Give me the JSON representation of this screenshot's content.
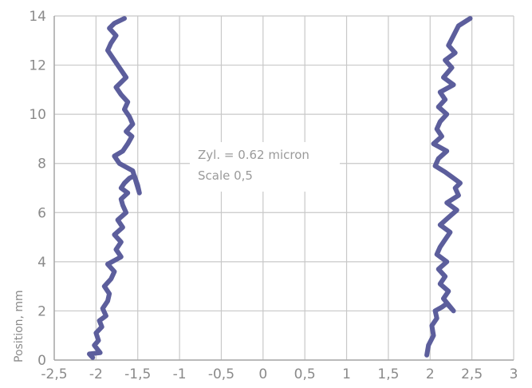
{
  "chart_data": {
    "type": "line",
    "title": "",
    "xlabel": "",
    "ylabel": "Position, mm",
    "xlim": [
      -2.5,
      3
    ],
    "ylim": [
      0,
      14
    ],
    "x_ticks": [
      "-2,5",
      "-2",
      "-1,5",
      "-1",
      "-0,5",
      "0",
      "0,5",
      "1",
      "1,5",
      "2",
      "2,5",
      "3"
    ],
    "y_ticks": [
      "0",
      "2",
      "4",
      "6",
      "8",
      "10",
      "12",
      "14"
    ],
    "grid": true,
    "legend": "none",
    "series_color": "#5c5e9c",
    "annotations": [
      "Zyl. = 0.62 micron",
      "Scale 0,5"
    ],
    "series": [
      {
        "x": [
          -2.04,
          -2.08,
          -1.95,
          -2.02,
          -1.97,
          -2.0,
          -1.93,
          -1.96,
          -1.88,
          -1.92,
          -1.86,
          -1.84,
          -1.9,
          -1.82,
          -1.78,
          -1.86,
          -1.7,
          -1.76,
          -1.7,
          -1.78,
          -1.68,
          -1.74,
          -1.64,
          -1.68,
          -1.7,
          -1.62,
          -1.7,
          -1.66,
          -1.6,
          -1.54,
          -1.5,
          -1.48,
          -1.56,
          -1.72,
          -1.78,
          -1.68,
          -1.62,
          -1.57,
          -1.64,
          -1.56,
          -1.6,
          -1.66,
          -1.62,
          -1.7,
          -1.76,
          -1.64,
          -1.72,
          -1.78,
          -1.86,
          -1.82,
          -1.76,
          -1.84,
          -1.78,
          -1.66
        ],
        "y": [
          0.1,
          0.25,
          0.3,
          0.6,
          0.8,
          1.1,
          1.35,
          1.6,
          1.8,
          2.1,
          2.4,
          2.7,
          3.0,
          3.3,
          3.6,
          3.9,
          4.2,
          4.5,
          4.8,
          5.1,
          5.4,
          5.7,
          6.0,
          6.3,
          6.55,
          6.8,
          7.0,
          7.2,
          7.4,
          7.5,
          7.1,
          6.8,
          7.7,
          8.0,
          8.3,
          8.5,
          8.8,
          9.1,
          9.3,
          9.6,
          9.9,
          10.2,
          10.5,
          10.8,
          11.1,
          11.5,
          11.9,
          12.2,
          12.6,
          12.9,
          13.2,
          13.5,
          13.7,
          13.9
        ]
      },
      {
        "x": [
          1.96,
          1.98,
          2.04,
          2.02,
          2.08,
          2.06,
          2.14,
          2.2,
          2.28,
          2.16,
          2.22,
          2.12,
          2.18,
          2.1,
          2.2,
          2.08,
          2.12,
          2.18,
          2.24,
          2.12,
          2.22,
          2.32,
          2.2,
          2.34,
          2.3,
          2.36,
          2.26,
          2.18,
          2.06,
          2.1,
          2.2,
          2.04,
          2.14,
          2.08,
          2.12,
          2.2,
          2.1,
          2.18,
          2.12,
          2.28,
          2.16,
          2.26,
          2.18,
          2.3,
          2.22,
          2.28,
          2.34,
          2.48
        ],
        "y": [
          0.2,
          0.6,
          1.0,
          1.4,
          1.7,
          2.0,
          2.15,
          2.3,
          2.0,
          2.5,
          2.8,
          3.1,
          3.4,
          3.7,
          4.0,
          4.3,
          4.6,
          4.9,
          5.2,
          5.5,
          5.8,
          6.1,
          6.4,
          6.7,
          7.0,
          7.2,
          7.45,
          7.65,
          7.9,
          8.2,
          8.5,
          8.8,
          9.1,
          9.4,
          9.7,
          10.0,
          10.3,
          10.6,
          10.9,
          11.2,
          11.5,
          11.9,
          12.2,
          12.5,
          12.8,
          13.2,
          13.6,
          13.9
        ]
      }
    ]
  }
}
